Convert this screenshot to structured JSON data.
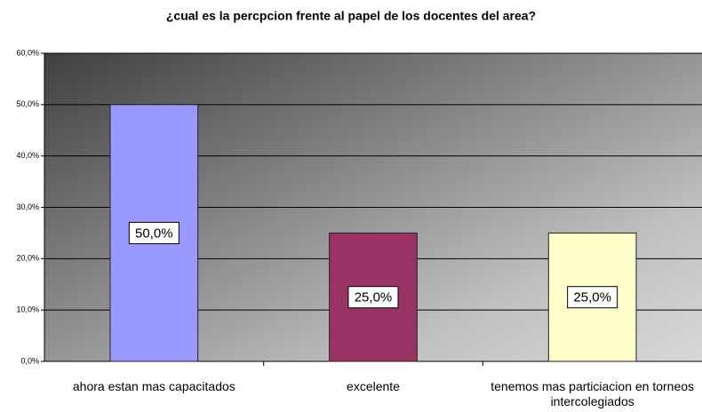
{
  "chart_data": {
    "type": "bar",
    "title": "¿cual es la percpcion frente al papel de los docentes del area?",
    "categories": [
      "ahora estan mas capacitados",
      "excelente",
      "tenemos mas particiacion en torneos intercolegiados"
    ],
    "values": [
      50,
      25,
      25
    ],
    "value_labels": [
      "50,0%",
      "25,0%",
      "25,0%"
    ],
    "colors": [
      "#9999ff",
      "#993366",
      "#ffffcc"
    ],
    "ylim": [
      0,
      60
    ],
    "yticks": [
      {
        "value": 0,
        "label": "0,0%"
      },
      {
        "value": 10,
        "label": "10,0%"
      },
      {
        "value": 20,
        "label": "20,0%"
      },
      {
        "value": 30,
        "label": "30,0%"
      },
      {
        "value": 40,
        "label": "40,0%"
      },
      {
        "value": 50,
        "label": "50,0%"
      },
      {
        "value": 60,
        "label": "60,0%"
      }
    ],
    "grid": true
  }
}
